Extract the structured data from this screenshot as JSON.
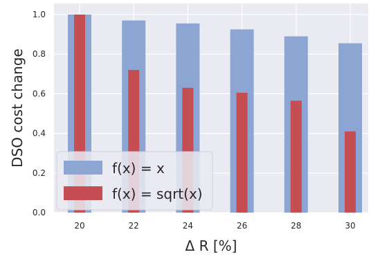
{
  "chart_data": {
    "type": "bar",
    "categories": [
      "20",
      "22",
      "24",
      "26",
      "28",
      "30"
    ],
    "series": [
      {
        "name": "f(x) = x",
        "values": [
          1.0,
          0.97,
          0.955,
          0.925,
          0.89,
          0.855
        ],
        "color": "#8da5d2"
      },
      {
        "name": "f(x) = sqrt(x)",
        "values": [
          1.0,
          0.72,
          0.63,
          0.605,
          0.565,
          0.41
        ],
        "color": "#c44e52"
      }
    ],
    "xlabel": "Δ R [%]",
    "ylabel": "DSO cost change",
    "ylim": [
      0.0,
      1.05
    ],
    "yticks": [
      "0.0",
      "0.2",
      "0.4",
      "0.6",
      "0.8",
      "1.0"
    ],
    "grid": true,
    "legend_position": "lower-left",
    "background": "#eaeaf2"
  }
}
